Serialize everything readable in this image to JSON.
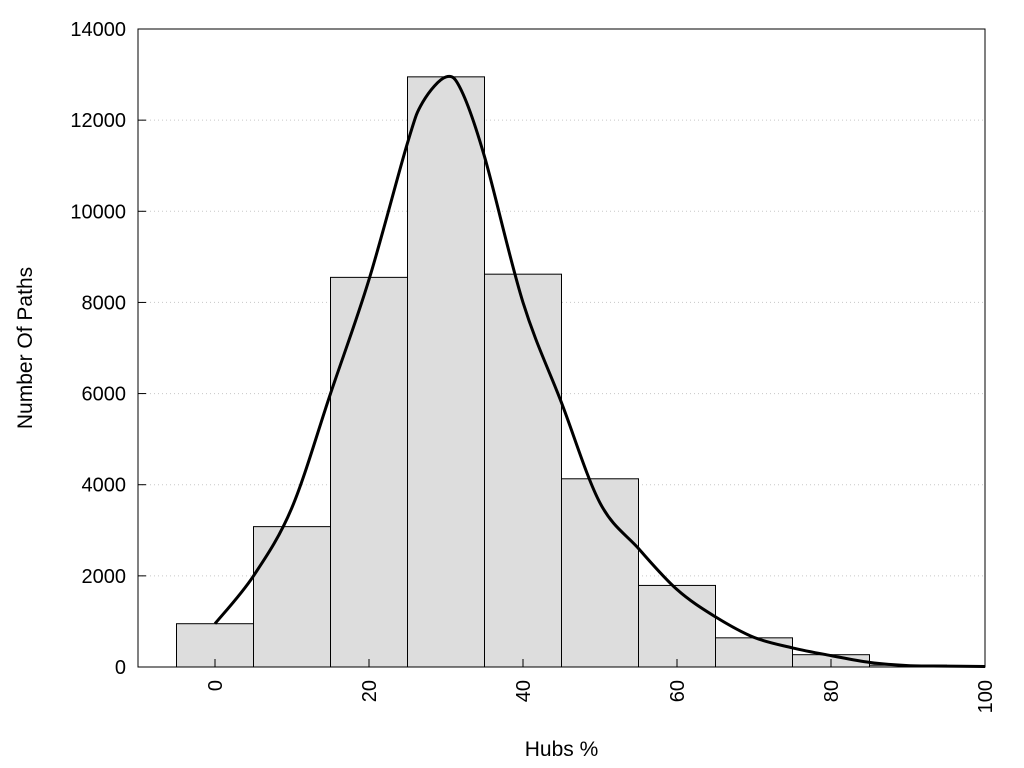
{
  "chart_data": {
    "type": "bar",
    "xlabel": "Hubs %",
    "ylabel": "Number Of Paths",
    "xlim": [
      -10,
      100
    ],
    "ylim": [
      0,
      14000
    ],
    "xticks": [
      "0",
      "20",
      "40",
      "60",
      "80",
      "100"
    ],
    "yticks": [
      "0",
      "2000",
      "4000",
      "6000",
      "8000",
      "10000",
      "12000",
      "14000"
    ],
    "bin_width": 10,
    "bins": [
      0,
      10,
      20,
      30,
      40,
      50,
      60,
      70,
      80,
      90
    ],
    "values": [
      950,
      3080,
      8550,
      12950,
      8620,
      4130,
      1790,
      640,
      270,
      40
    ],
    "grid": true,
    "density_curve": {
      "x": [
        0,
        5,
        10,
        15,
        20,
        25,
        27,
        30,
        32,
        35,
        40,
        45,
        50,
        55,
        60,
        65,
        70,
        75,
        80,
        85,
        90,
        95,
        100
      ],
      "y": [
        950,
        2000,
        3500,
        6000,
        8500,
        11500,
        12400,
        12950,
        12650,
        11200,
        8000,
        5800,
        3600,
        2600,
        1700,
        1100,
        650,
        420,
        250,
        100,
        30,
        20,
        10
      ]
    }
  }
}
